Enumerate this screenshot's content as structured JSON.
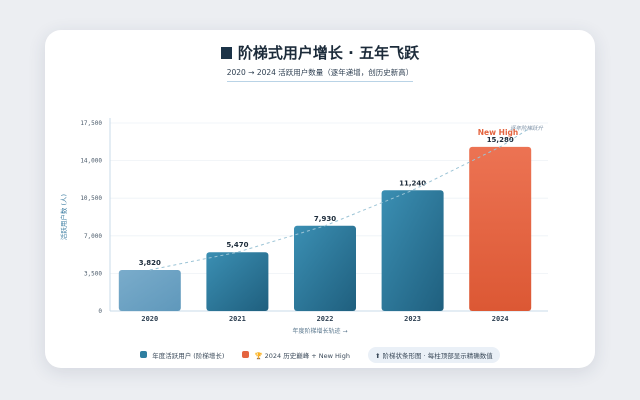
{
  "title": "阶梯式用户增长 · 五年飞跃",
  "subtitle": "2020 → 2024 活跃用户数量（逐年递增，创历史新高）",
  "legend": {
    "series_label": "年度活跃用户 (阶梯增长)",
    "highlight_label": "🏆 2024 历史巅峰 + New High",
    "note": "⬆ 阶梯状条形图 · 每柱顶部显示精确数值"
  },
  "colors": {
    "series": "#2e7ea0",
    "highlight": "#e4643f",
    "trend": "#9cc4d6"
  },
  "chart_data": {
    "type": "bar",
    "title": "阶梯式用户增长 · 五年飞跃",
    "xlabel": "年度阶梯增长轨迹 →",
    "ylabel": "活跃用户数 (人)",
    "categories": [
      "2020",
      "2021",
      "2022",
      "2023",
      "2024"
    ],
    "values": [
      3820,
      5470,
      7930,
      11240,
      15280
    ],
    "value_labels": [
      "3,820",
      "5,470",
      "7,930",
      "11,240",
      "15,280"
    ],
    "ylim": [
      0,
      17500
    ],
    "yticks": [
      0,
      3500,
      7000,
      10500,
      14000,
      17500
    ],
    "ytick_labels": [
      "0",
      "3,500",
      "7,000",
      "10,500",
      "14,000",
      "17,500"
    ],
    "grid": true,
    "highlight_index": 4,
    "annotations": [
      "New High",
      "逐年阶梯跃升"
    ],
    "trend_line": "dashed",
    "legend_position": "bottom"
  }
}
